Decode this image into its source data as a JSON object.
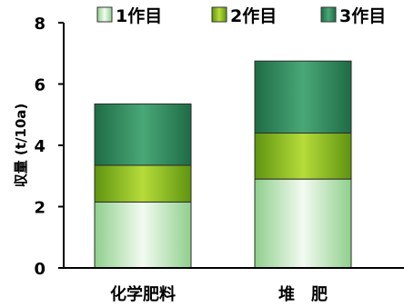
{
  "chart_data": {
    "type": "bar",
    "stacked": true,
    "categories": [
      "化学肥料",
      "堆　肥"
    ],
    "series": [
      {
        "name": "1作目",
        "values": [
          2.15,
          2.9
        ],
        "color": "#c8e8c4"
      },
      {
        "name": "2作目",
        "values": [
          1.2,
          1.5
        ],
        "color": "#8fbe1f"
      },
      {
        "name": "3作目",
        "values": [
          2.0,
          2.35
        ],
        "color": "#2f8a5e"
      }
    ],
    "ylabel": "収量 (t/10a)",
    "xlabel": "",
    "title": "",
    "ylim": [
      0,
      8
    ],
    "yticks": [
      0,
      2,
      4,
      6,
      8
    ],
    "grid": false,
    "legend_position": "top"
  }
}
